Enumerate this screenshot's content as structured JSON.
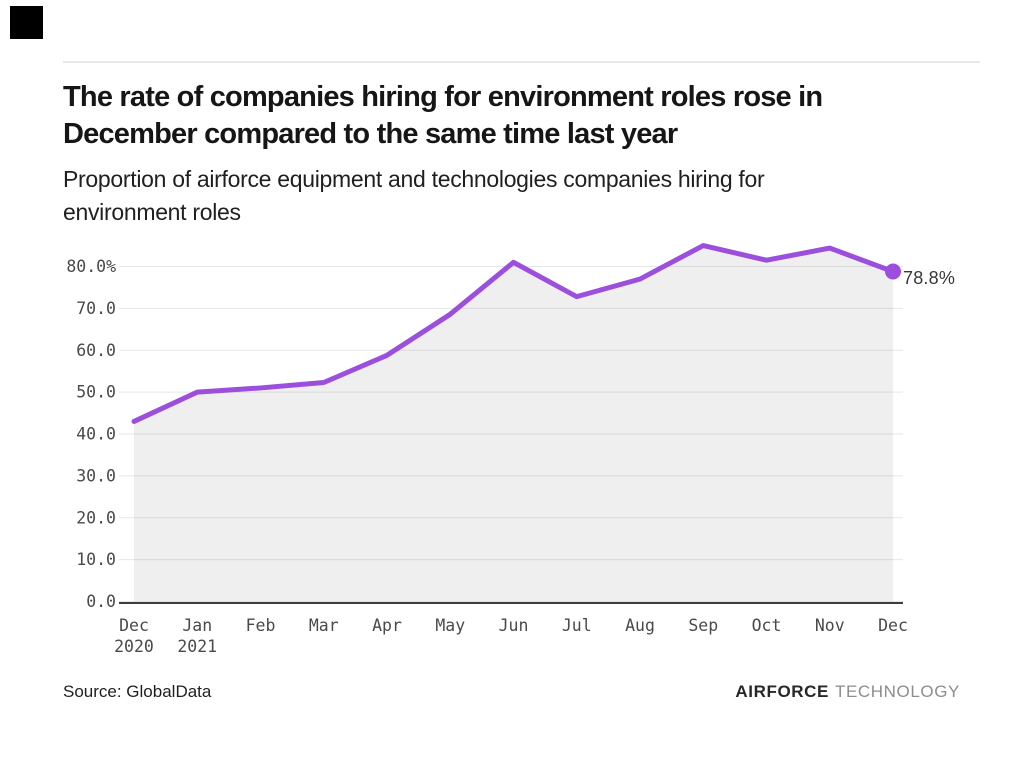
{
  "page": {
    "title_lines": {
      "0": "The rate of companies hiring for environment roles rose in",
      "1": "December compared to the same time last year"
    },
    "subtitle_lines": {
      "0": "Proportion of airforce equipment and technologies companies hiring for",
      "1": "environment roles"
    },
    "source": "Source: GlobalData",
    "logo": {
      "primary": "AIRFORCE",
      "secondary": "TECHNOLOGY"
    }
  },
  "chart_data": {
    "type": "area",
    "title": "The rate of companies hiring for environment roles rose in December compared to the same time last year",
    "subtitle": "Proportion of airforce equipment and technologies companies hiring for environment roles",
    "categories": [
      "Dec",
      "Jan",
      "Feb",
      "Mar",
      "Apr",
      "May",
      "Jun",
      "Jul",
      "Aug",
      "Sep",
      "Oct",
      "Nov",
      "Dec"
    ],
    "category_years": [
      "2020",
      "2021",
      "",
      "",
      "",
      "",
      "",
      "",
      "",
      "",
      "",
      "",
      ""
    ],
    "values": [
      43.0,
      50.0,
      51.0,
      52.3,
      58.8,
      68.6,
      81.0,
      72.8,
      77.0,
      85.0,
      81.5,
      84.4,
      78.8
    ],
    "unit": "%",
    "end_label": "78.8%",
    "y_ticks": [
      {
        "value": 80,
        "label": "80.0%"
      },
      {
        "value": 70,
        "label": "70.0"
      },
      {
        "value": 60,
        "label": "60.0"
      },
      {
        "value": 50,
        "label": "50.0"
      },
      {
        "value": 40,
        "label": "40.0"
      },
      {
        "value": 30,
        "label": "30.0"
      },
      {
        "value": 20,
        "label": "20.0"
      },
      {
        "value": 10,
        "label": "10.0"
      },
      {
        "value": 0,
        "label": "0.0"
      }
    ],
    "ylim": [
      0,
      86.5
    ],
    "grid": "horizontal-only",
    "legend": "none",
    "colors": {
      "line": "#9b4fdc",
      "area": "#efefef",
      "grid": "#e7e7e7",
      "axis": "#3d3d3d",
      "tick_text": "#4a4a4a",
      "annotation_text": "#383838"
    }
  }
}
